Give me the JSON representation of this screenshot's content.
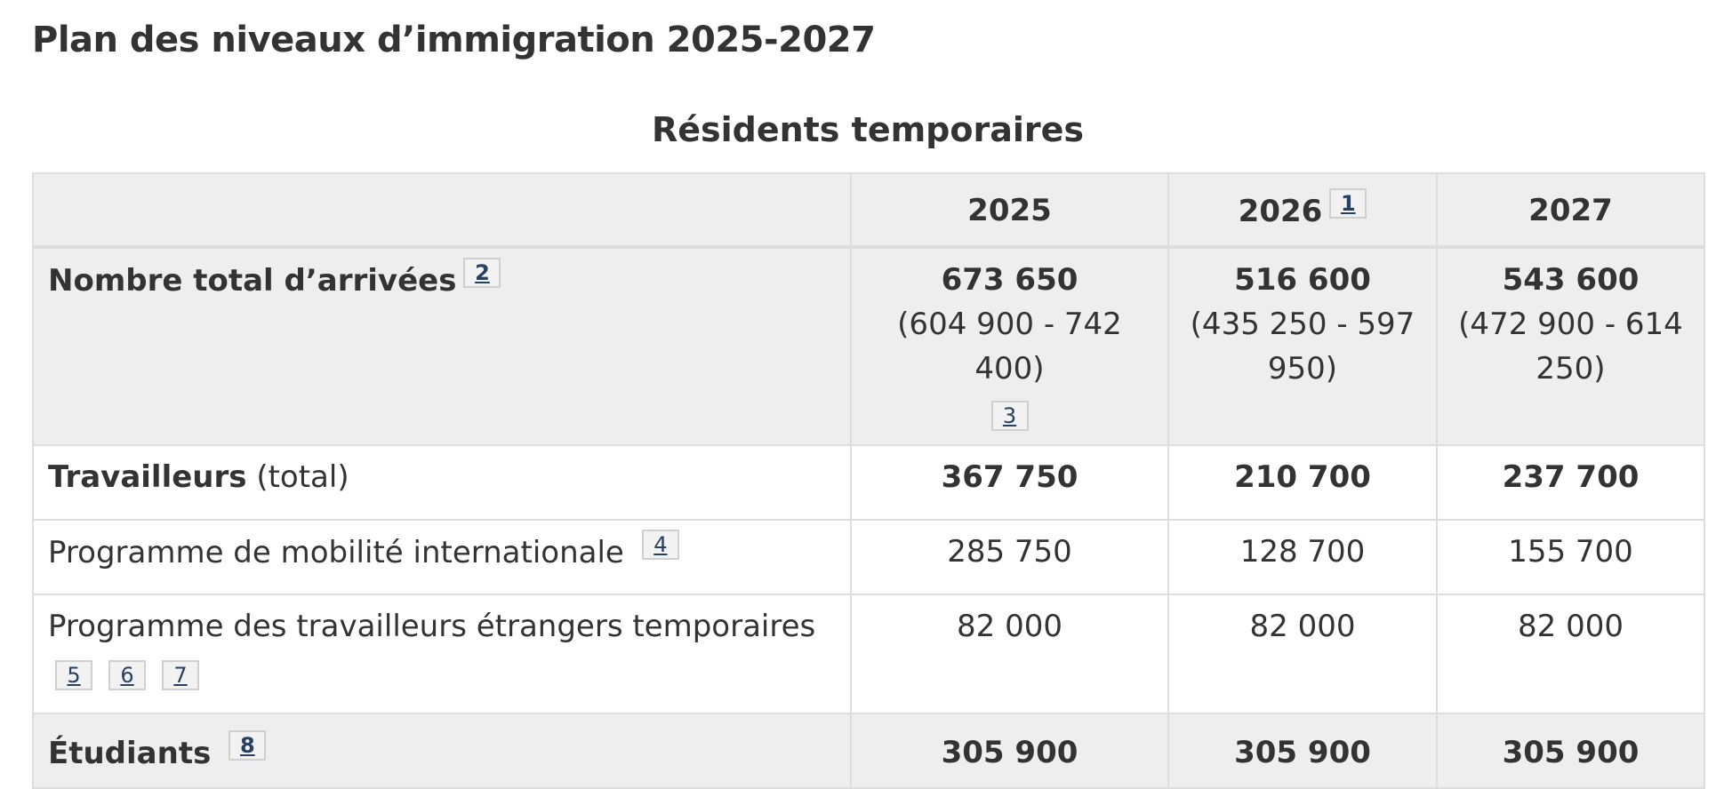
{
  "page_title": "Plan des niveaux d’immigration 2025-2027",
  "table": {
    "caption": "Résidents temporaires",
    "columns": [
      "",
      "2025",
      "2026",
      "2027"
    ],
    "column_footnotes": {
      "2026": "1"
    },
    "rows": [
      {
        "label": "Nombre total d’arrivées",
        "label_suffix": "",
        "footnotes": [
          "2"
        ],
        "values": [
          "673 650",
          "516 600",
          "543 600"
        ],
        "ranges": [
          "(604 900 - 742 400)",
          "(435 250 - 597 950)",
          "(472 900 - 614 250)"
        ],
        "value_footnotes": [
          "3",
          "",
          ""
        ]
      },
      {
        "label": "Travailleurs",
        "label_suffix": " (total)",
        "footnotes": [],
        "values": [
          "367 750",
          "210 700",
          "237 700"
        ]
      },
      {
        "label": "Programme de mobilité internationale",
        "footnotes": [
          "4"
        ],
        "values": [
          "285 750",
          "128 700",
          "155 700"
        ]
      },
      {
        "label": "Programme des travailleurs étrangers temporaires",
        "footnotes": [
          "5",
          "6",
          "7"
        ],
        "values": [
          "82 000",
          "82 000",
          "82 000"
        ]
      },
      {
        "label": "Étudiants",
        "footnotes": [
          "8"
        ],
        "values": [
          "305 900",
          "305 900",
          "305 900"
        ]
      }
    ]
  }
}
